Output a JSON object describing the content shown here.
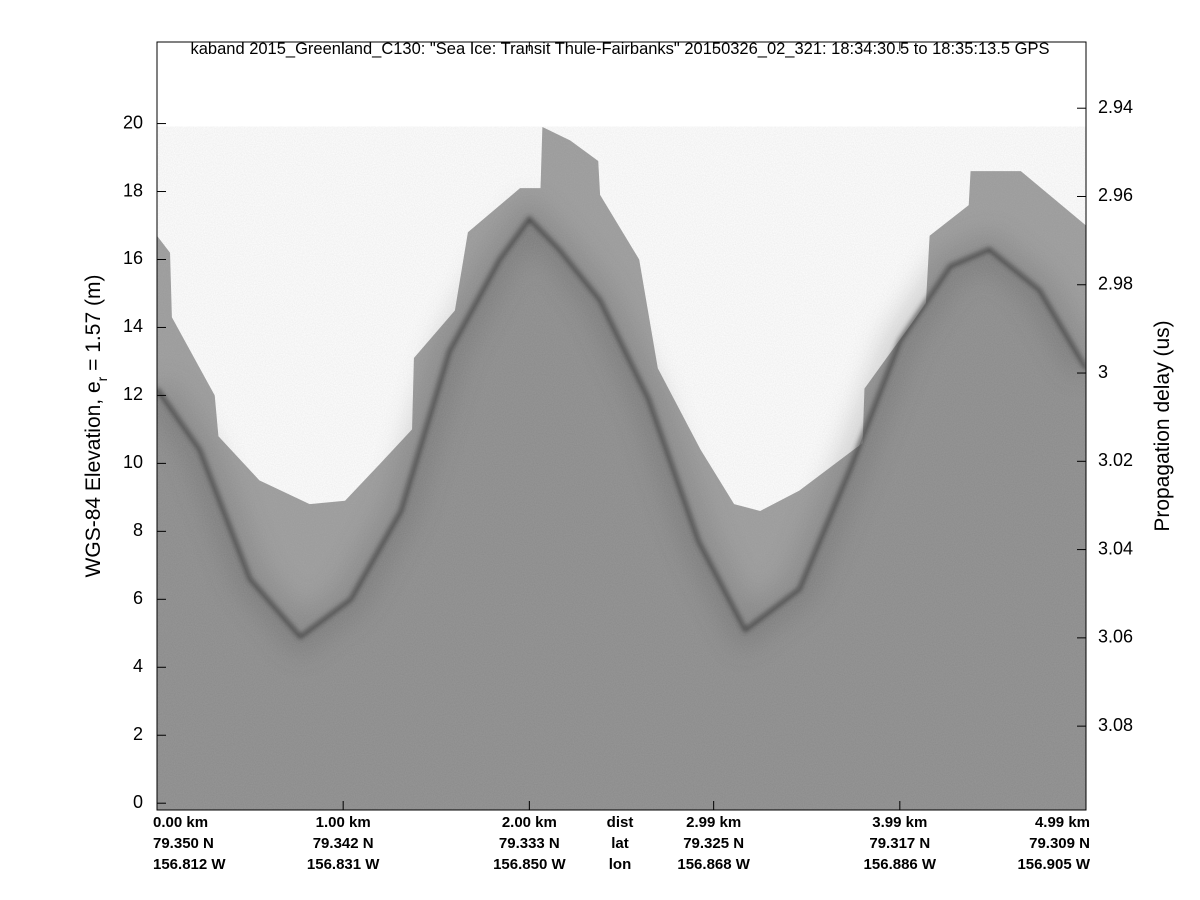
{
  "chart_data": {
    "type": "echogram",
    "title": "kaband 2015_Greenland_C130: \"Sea Ice: Transit Thule-Fairbanks\"  20150326_02_321: 18:34:30.5 to 18:35:13.5 GPS",
    "ylabel": {
      "text": "WGS-84 Elevation, e",
      "subscript": "r",
      "suffix": " = 1.57 (m)"
    },
    "y2label": "Propagation delay (us)",
    "xlim": [
      0,
      4.99
    ],
    "xticks": [
      {
        "value": 0,
        "label": "0.00 km"
      },
      {
        "value": 1,
        "label": "1.00 km"
      },
      {
        "value": 2,
        "label": "2.00 km"
      },
      {
        "value": 2.99,
        "label": "2.99 km"
      },
      {
        "value": 3.99,
        "label": "3.99 km"
      },
      {
        "value": 4.99,
        "label": "4.99 km"
      }
    ],
    "lat_labels": [
      "79.350 N",
      "79.342 N",
      "79.333 N",
      "79.325 N",
      "79.317 N",
      "79.309 N"
    ],
    "lon_labels": [
      "156.812 W",
      "156.831 W",
      "156.850 W",
      "156.868 W",
      "156.886 W",
      "156.905 W"
    ],
    "row_labels": [
      "dist",
      "lat",
      "lon"
    ],
    "ylim": [
      -0.2,
      22.4
    ],
    "yticks": [
      0,
      2,
      4,
      6,
      8,
      10,
      12,
      14,
      16,
      18,
      20
    ],
    "y2lim": [
      2.925,
      3.099
    ],
    "y2ticks": [
      2.94,
      2.96,
      2.98,
      3,
      3.02,
      3.04,
      3.06,
      3.08
    ],
    "y2_reversed": true,
    "series": [
      {
        "color": "#9a9a9a",
        "x": [
          0,
          0.07,
          0.08,
          0.31,
          0.33,
          0.55,
          0.82,
          1.01,
          1.2,
          1.37,
          1.38,
          1.6,
          1.67,
          1.95,
          2.06,
          2.07,
          2.22,
          2.37,
          2.38,
          2.59,
          2.69,
          2.92,
          3.1,
          3.24,
          3.45,
          3.79,
          3.8,
          4.13,
          4.15,
          4.36,
          4.37,
          4.64,
          4.99
        ],
        "values": [
          16.7,
          16.2,
          14.3,
          12,
          10.8,
          9.5,
          8.8,
          8.9,
          10,
          11,
          13.1,
          14.5,
          16.8,
          18.1,
          18.1,
          19.9,
          19.5,
          18.9,
          17.9,
          16,
          12.8,
          10.4,
          8.8,
          8.6,
          9.2,
          10.6,
          12.2,
          14.7,
          16.7,
          17.6,
          18.6,
          18.6,
          17
        ]
      },
      {
        "color": "#3a3a3a",
        "x": [
          0,
          0.23,
          0.5,
          0.77,
          1.04,
          1.31,
          1.57,
          1.84,
          2,
          2.16,
          2.38,
          2.64,
          2.91,
          3.16,
          3.45,
          3.72,
          3.99,
          4.26,
          4.47,
          4.74,
          4.99
        ],
        "values": [
          12.2,
          10.4,
          6.6,
          4.9,
          6,
          8.6,
          13.3,
          16,
          17.2,
          16.3,
          14.8,
          11.9,
          7.7,
          5.1,
          6.3,
          9.8,
          13.6,
          15.8,
          16.3,
          15.1,
          12.8
        ]
      }
    ]
  }
}
